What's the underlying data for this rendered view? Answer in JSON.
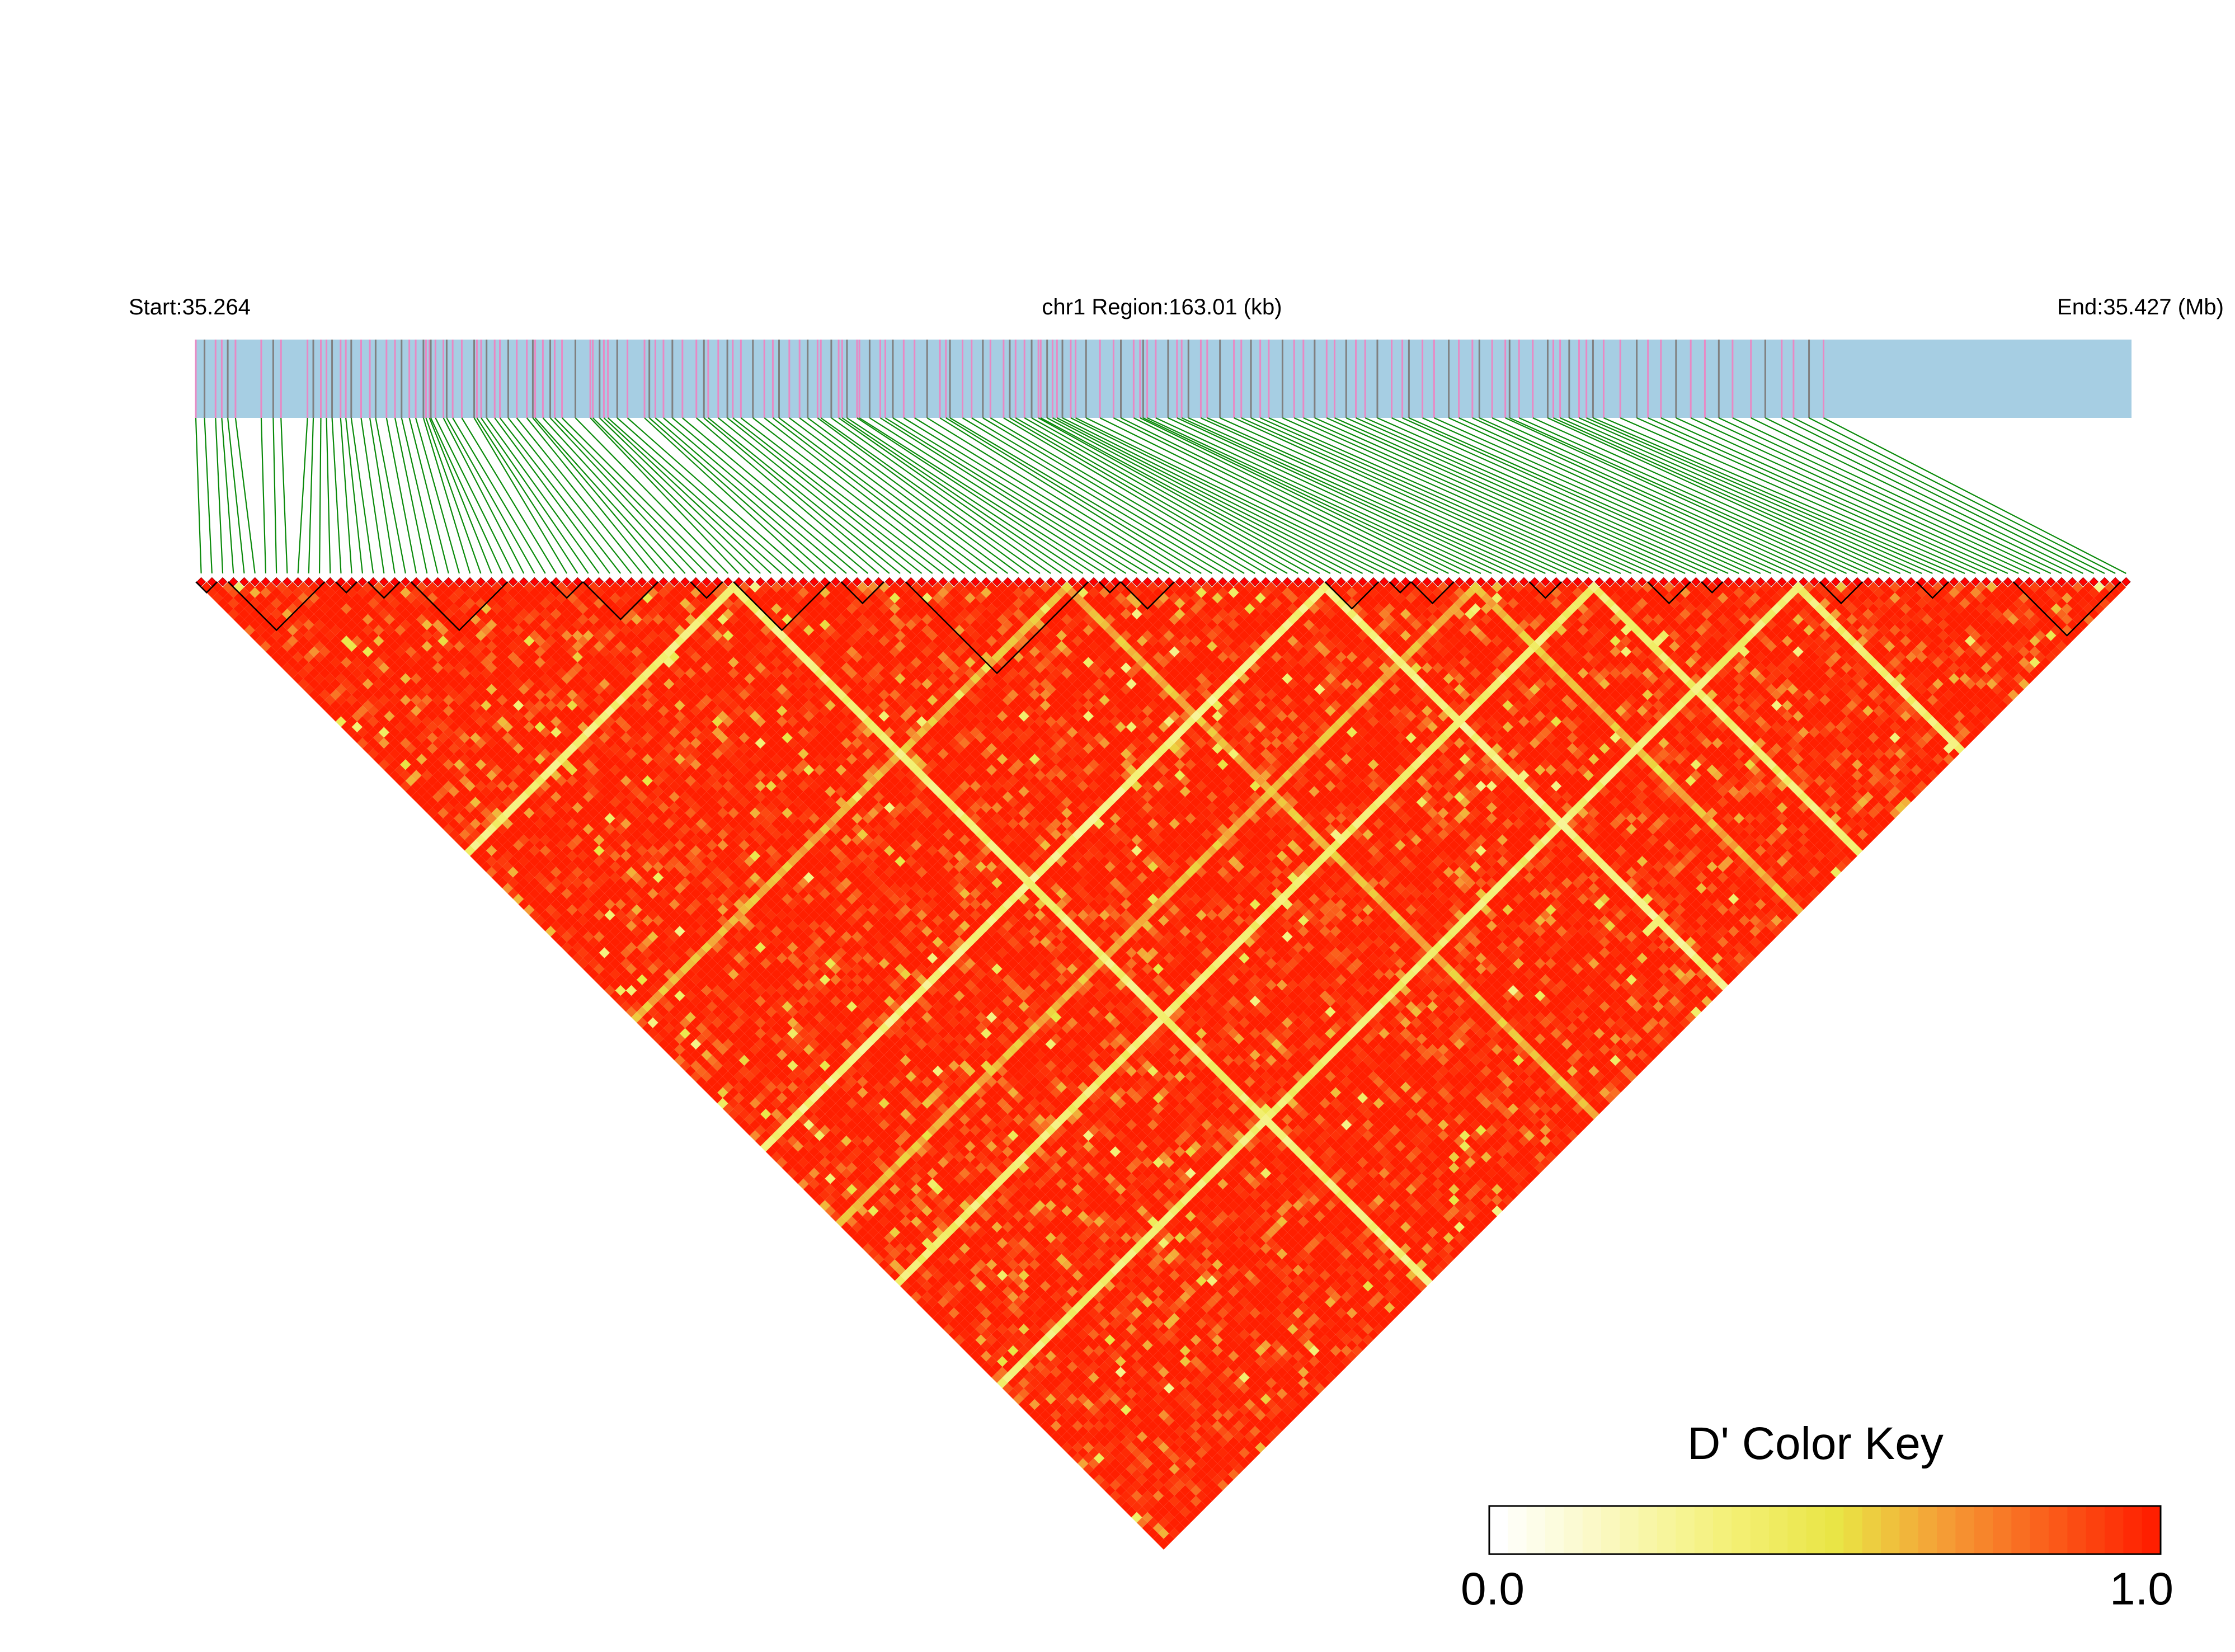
{
  "chart_data": {
    "type": "heatmap",
    "subtype": "linkage-disequilibrium-triangle",
    "header": {
      "start_label": "Start:35.264",
      "region_label": "chr1 Region:163.01 (kb)",
      "end_label": "End:35.427 (Mb)"
    },
    "region": {
      "chromosome": "chr1",
      "start_mb": 35.264,
      "end_mb": 35.427,
      "length_kb": 163.01
    },
    "snp_count": 180,
    "snp_positions_fraction": [
      0,
      0.0045,
      0.0102,
      0.0134,
      0.0165,
      0.0205,
      0.0338,
      0.04,
      0.044,
      0.0577,
      0.0607,
      0.0646,
      0.0675,
      0.0704,
      0.0748,
      0.0775,
      0.0803,
      0.0854,
      0.0899,
      0.0929,
      0.0985,
      0.1029,
      0.1063,
      0.1103,
      0.1136,
      0.1176,
      0.1189,
      0.1207,
      0.1214,
      0.1238,
      0.1279,
      0.1296,
      0.1327,
      0.1374,
      0.1438,
      0.1452,
      0.1474,
      0.1502,
      0.1544,
      0.1571,
      0.1614,
      0.1658,
      0.171,
      0.1741,
      0.1753,
      0.1793,
      0.1831,
      0.1854,
      0.1892,
      0.1961,
      0.2038,
      0.2051,
      0.2086,
      0.2108,
      0.2129,
      0.2177,
      0.223,
      0.2318,
      0.2343,
      0.2374,
      0.2416,
      0.2462,
      0.2514,
      0.2586,
      0.2625,
      0.2647,
      0.2699,
      0.2746,
      0.2774,
      0.2816,
      0.2878,
      0.2937,
      0.2981,
      0.3013,
      0.3066,
      0.3119,
      0.3161,
      0.3212,
      0.3229,
      0.3283,
      0.3321,
      0.3339,
      0.3364,
      0.3416,
      0.3428,
      0.3481,
      0.3536,
      0.3562,
      0.3601,
      0.3657,
      0.3713,
      0.3778,
      0.3844,
      0.3875,
      0.3896,
      0.3961,
      0.4008,
      0.4066,
      0.4105,
      0.4173,
      0.4205,
      0.4235,
      0.4281,
      0.4318,
      0.4353,
      0.4365,
      0.4398,
      0.4426,
      0.4449,
      0.4477,
      0.452,
      0.4545,
      0.4599,
      0.4671,
      0.4741,
      0.4779,
      0.4845,
      0.4878,
      0.4894,
      0.4915,
      0.4959,
      0.5023,
      0.5069,
      0.5093,
      0.5128,
      0.5192,
      0.5225,
      0.5291,
      0.5363,
      0.5401,
      0.5451,
      0.5499,
      0.5543,
      0.5614,
      0.5674,
      0.5722,
      0.578,
      0.5842,
      0.5883,
      0.5943,
      0.5993,
      0.6041,
      0.6104,
      0.6178,
      0.6233,
      0.6267,
      0.6337,
      0.6397,
      0.6473,
      0.6525,
      0.6595,
      0.6631,
      0.6697,
      0.6765,
      0.6787,
      0.6836,
      0.6907,
      0.6984,
      0.7013,
      0.7048,
      0.7095,
      0.7146,
      0.7184,
      0.7218,
      0.7273,
      0.7359,
      0.7444,
      0.7502,
      0.7569,
      0.7647,
      0.7723,
      0.7796,
      0.7868,
      0.7939,
      0.8034,
      0.8108,
      0.8193,
      0.8254,
      0.8334,
      0.8409
    ],
    "recombination_breaks": [
      {
        "between_snps": [
          49,
          50
        ],
        "d_prime_multiplier": 0.28
      },
      {
        "between_snps": [
          104,
          105
        ],
        "d_prime_multiplier": 0.25
      },
      {
        "between_snps": [
          129,
          130
        ],
        "d_prime_multiplier": 0.3
      },
      {
        "between_snps": [
          148,
          149
        ],
        "d_prime_multiplier": 0.3
      },
      {
        "between_snps": [
          80,
          81
        ],
        "d_prime_multiplier": 0.55
      },
      {
        "between_snps": [
          118,
          119
        ],
        "d_prime_multiplier": 0.55
      }
    ],
    "haplotype_blocks": [
      {
        "from_snp": 0,
        "to_snp": 1
      },
      {
        "from_snp": 3,
        "to_snp": 11
      },
      {
        "from_snp": 13,
        "to_snp": 14
      },
      {
        "from_snp": 16,
        "to_snp": 18
      },
      {
        "from_snp": 20,
        "to_snp": 28
      },
      {
        "from_snp": 33,
        "to_snp": 35
      },
      {
        "from_snp": 36,
        "to_snp": 42
      },
      {
        "from_snp": 46,
        "to_snp": 48
      },
      {
        "from_snp": 50,
        "to_snp": 58
      },
      {
        "from_snp": 60,
        "to_snp": 63
      },
      {
        "from_snp": 66,
        "to_snp": 82
      },
      {
        "from_snp": 84,
        "to_snp": 85
      },
      {
        "from_snp": 86,
        "to_snp": 90
      },
      {
        "from_snp": 105,
        "to_snp": 109
      },
      {
        "from_snp": 111,
        "to_snp": 112
      },
      {
        "from_snp": 113,
        "to_snp": 116
      },
      {
        "from_snp": 124,
        "to_snp": 126
      },
      {
        "from_snp": 135,
        "to_snp": 138
      },
      {
        "from_snp": 140,
        "to_snp": 141
      },
      {
        "from_snp": 151,
        "to_snp": 154
      },
      {
        "from_snp": 160,
        "to_snp": 162
      },
      {
        "from_snp": 169,
        "to_snp": 178
      }
    ],
    "color_key": {
      "title": "D' Color Key",
      "min_label": "0.0",
      "max_label": "1.0",
      "range": [
        0,
        1
      ],
      "colors": [
        "#ffffff",
        "#f4f178",
        "#e9e544",
        "#f59e36",
        "#ff1f00"
      ]
    },
    "colors": {
      "gene_track_bg": "#a6cee3",
      "snp_tick_primary": "#e889c4",
      "snp_tick_secondary": "#808080",
      "connector": "#0a8a0a",
      "snp_marker": "#ff0000",
      "block_outline": "#000000"
    }
  }
}
